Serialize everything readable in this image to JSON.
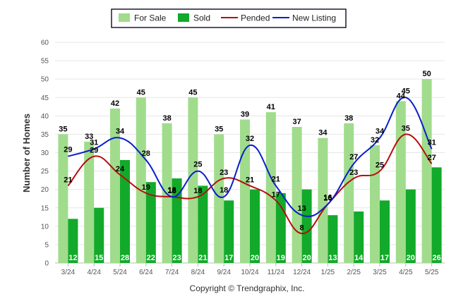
{
  "chart_data": {
    "type": "bar",
    "categories": [
      "3/24",
      "4/24",
      "5/24",
      "6/24",
      "7/24",
      "8/24",
      "9/24",
      "10/24",
      "11/24",
      "12/24",
      "1/25",
      "2/25",
      "3/25",
      "4/25",
      "5/25"
    ],
    "series": [
      {
        "name": "For Sale",
        "kind": "bar",
        "color": "#a0dc8c",
        "values": [
          35,
          33,
          42,
          45,
          38,
          45,
          35,
          39,
          41,
          37,
          34,
          38,
          32,
          44,
          50
        ]
      },
      {
        "name": "Sold",
        "kind": "bar",
        "color": "#12aa2a",
        "values": [
          12,
          15,
          28,
          22,
          23,
          21,
          17,
          20,
          19,
          20,
          13,
          14,
          17,
          20,
          26
        ]
      },
      {
        "name": "Pended",
        "kind": "line",
        "color": "#b50d0d",
        "values": [
          21,
          29,
          24,
          19,
          18,
          18,
          23,
          21,
          17,
          8,
          16,
          23,
          25,
          35,
          27
        ]
      },
      {
        "name": "New Listing",
        "kind": "line",
        "color": "#0a1ecc",
        "values": [
          29,
          31,
          34,
          28,
          18,
          25,
          18,
          32,
          21,
          13,
          16,
          27,
          34,
          45,
          31
        ]
      }
    ],
    "title": "",
    "xlabel": "",
    "ylabel": "Number of Homes",
    "ylim": [
      0,
      60
    ],
    "yticks": [
      0,
      5,
      10,
      15,
      20,
      25,
      30,
      35,
      40,
      45,
      50,
      55,
      60
    ],
    "grid": true,
    "legend_position": "top-center"
  },
  "credit": "Copyright © Trendgraphix, Inc."
}
